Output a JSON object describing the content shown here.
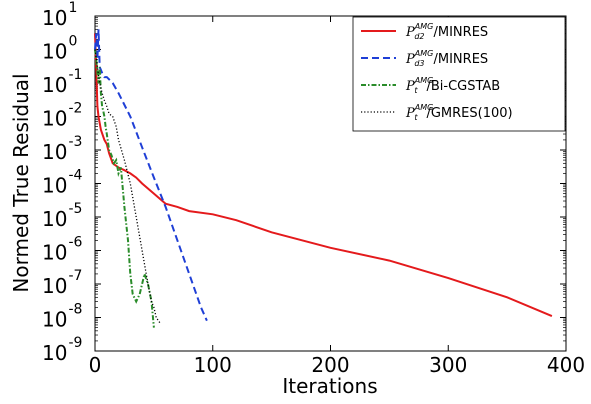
{
  "chart_data": {
    "type": "line",
    "title": "",
    "xlabel": "Iterations",
    "ylabel": "Normed True Residual",
    "xlim": [
      0,
      400
    ],
    "ylim": [
      1e-09,
      10
    ],
    "yscale": "log",
    "grid": false,
    "legend_position": "top-right",
    "x_ticks": [
      "0",
      "100",
      "200",
      "300",
      "400"
    ],
    "y_tick_exponents": [
      "1",
      "0",
      "-1",
      "-2",
      "-3",
      "-4",
      "-5",
      "-6",
      "-7",
      "-8",
      "-9"
    ],
    "y_tick_base": "10",
    "series": [
      {
        "name": "P_d2^AMG/MINRES",
        "legend": {
          "base": "P",
          "sub": "d2",
          "sup": "AMG",
          "suffix": "/MINRES"
        },
        "color": "#e41a1c",
        "style": "solid",
        "x": [
          0,
          1,
          2,
          3,
          5,
          8,
          10,
          12,
          15,
          20,
          25,
          30,
          35,
          40,
          50,
          60,
          70,
          80,
          100,
          120,
          150,
          200,
          250,
          300,
          350,
          388
        ],
        "y": [
          3,
          0.3,
          0.02,
          0.01,
          0.004,
          0.002,
          0.0015,
          0.0008,
          0.0004,
          0.0003,
          0.00025,
          0.0002,
          0.00015,
          0.0001,
          5e-05,
          2.5e-05,
          2e-05,
          1.5e-05,
          1.2e-05,
          8e-06,
          3.5e-06,
          1.2e-06,
          5e-07,
          1.5e-07,
          4e-08,
          1.1e-08
        ]
      },
      {
        "name": "P_d3^AMG/MINRES",
        "legend": {
          "base": "P",
          "sub": "d3",
          "sup": "AMG",
          "suffix": "/MINRES"
        },
        "color": "#1f3fd6",
        "style": "dashed",
        "x": [
          0,
          1,
          2,
          3,
          4,
          6,
          8,
          10,
          15,
          20,
          30,
          40,
          50,
          60,
          70,
          80,
          90,
          95
        ],
        "y": [
          1,
          3,
          0.5,
          4,
          0.3,
          0.2,
          0.15,
          0.15,
          0.1,
          0.05,
          0.01,
          0.0012,
          0.00015,
          2e-05,
          2e-06,
          2e-07,
          2e-08,
          8e-09
        ]
      },
      {
        "name": "P_t^AMG/Bi-CGSTAB",
        "legend": {
          "base": "P",
          "sub": "t",
          "sup": "AMG",
          "suffix": "/Bi-CGSTAB"
        },
        "color": "#2a8c2a",
        "style": "dashdot",
        "x": [
          0,
          1,
          2,
          3,
          4,
          5,
          6,
          7,
          8,
          9,
          10,
          12,
          14,
          16,
          18,
          20,
          22,
          25,
          28,
          30,
          32,
          35,
          38,
          40,
          42,
          45,
          48,
          50
        ],
        "y": [
          1,
          0.5,
          0.2,
          0.1,
          0.3,
          0.05,
          0.02,
          0.015,
          0.01,
          0.005,
          0.003,
          0.001,
          0.0007,
          0.0004,
          0.0005,
          0.0002,
          0.0003,
          2e-05,
          2e-06,
          2e-07,
          5e-08,
          3e-08,
          5e-08,
          1e-07,
          2e-07,
          1e-07,
          3e-08,
          5e-09
        ]
      },
      {
        "name": "P_t^AMG/GMRES(100)",
        "legend": {
          "base": "P",
          "sub": "t",
          "sup": "AMG",
          "suffix": "/GMRES(100)"
        },
        "color": "#000000",
        "style": "dotted",
        "x": [
          0,
          2,
          4,
          6,
          8,
          10,
          12,
          15,
          18,
          20,
          25,
          30,
          35,
          40,
          45,
          48,
          50,
          52,
          55
        ],
        "y": [
          1,
          0.3,
          0.1,
          0.05,
          0.03,
          0.02,
          0.012,
          0.01,
          0.005,
          0.002,
          0.0005,
          0.0001,
          1e-05,
          1e-06,
          1e-07,
          3e-08,
          2e-08,
          1e-08,
          7e-09
        ]
      }
    ]
  }
}
